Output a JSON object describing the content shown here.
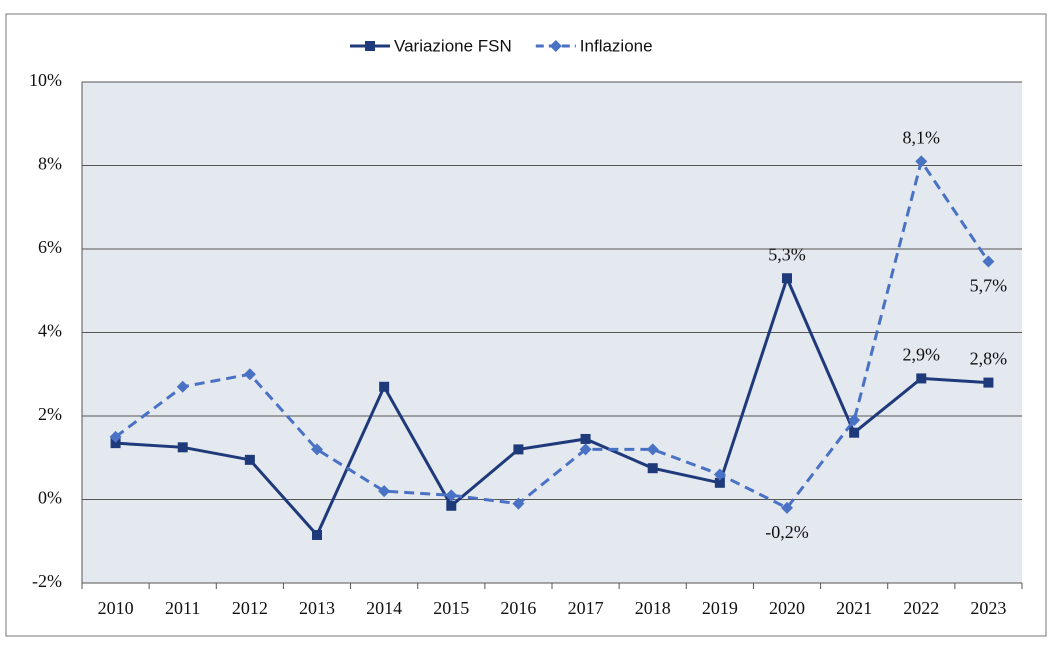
{
  "chart_data": {
    "type": "line",
    "categories": [
      "2010",
      "2011",
      "2012",
      "2013",
      "2014",
      "2015",
      "2016",
      "2017",
      "2018",
      "2019",
      "2020",
      "2021",
      "2022",
      "2023"
    ],
    "series": [
      {
        "name": "Variazione FSN",
        "color": "#1f3a7a",
        "dashed": false,
        "marker": "square",
        "values": [
          1.35,
          1.25,
          0.95,
          -0.85,
          2.7,
          -0.15,
          1.2,
          1.45,
          0.75,
          0.4,
          5.3,
          1.6,
          2.9,
          2.8
        ],
        "value_labels": [
          null,
          null,
          null,
          null,
          null,
          null,
          null,
          null,
          null,
          null,
          "5,3%",
          null,
          "2,9%",
          "2,8%"
        ]
      },
      {
        "name": "Inflazione",
        "color": "#4a72c4",
        "dashed": true,
        "marker": "diamond",
        "values": [
          1.5,
          2.7,
          3.0,
          1.2,
          0.2,
          0.1,
          -0.1,
          1.2,
          1.2,
          0.6,
          -0.2,
          1.9,
          8.1,
          5.7
        ],
        "value_labels": [
          null,
          null,
          null,
          null,
          null,
          null,
          null,
          null,
          null,
          null,
          "-0,2%",
          null,
          "8,1%",
          "5,7%"
        ]
      }
    ],
    "ylim": [
      -2,
      10
    ],
    "yticks": [
      {
        "value": -2,
        "label": "-2%"
      },
      {
        "value": 0,
        "label": "0%"
      },
      {
        "value": 2,
        "label": "2%"
      },
      {
        "value": 4,
        "label": "4%"
      },
      {
        "value": 6,
        "label": "6%"
      },
      {
        "value": 8,
        "label": "8%"
      },
      {
        "value": 10,
        "label": "10%"
      }
    ],
    "grid": true,
    "legend": "top"
  }
}
